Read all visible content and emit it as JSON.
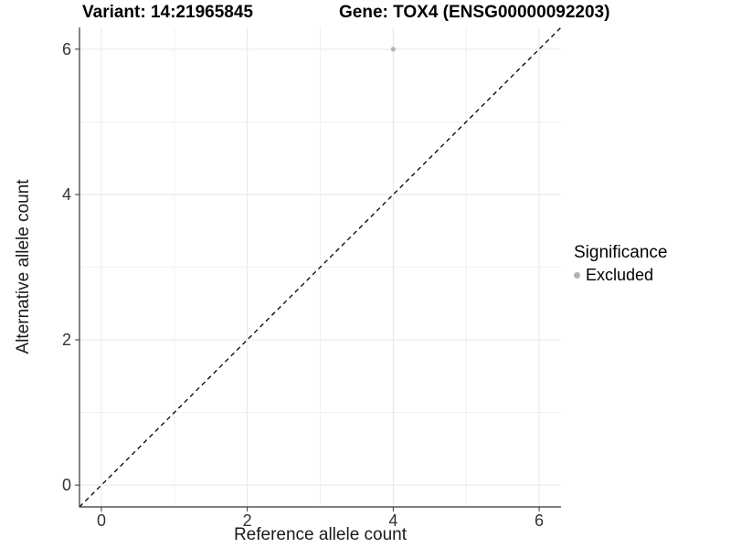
{
  "chart_data": {
    "type": "scatter",
    "title_left": "Variant: 14:21965845",
    "title_right": "Gene: TOX4 (ENSG00000092203)",
    "xlabel": "Reference allele count",
    "ylabel": "Alternative allele count",
    "xlim": [
      -0.3,
      6.3
    ],
    "ylim": [
      -0.3,
      6.3
    ],
    "x_ticks": [
      0,
      2,
      4,
      6
    ],
    "y_ticks": [
      0,
      2,
      4,
      6
    ],
    "grid": {
      "major": [
        0,
        2,
        4,
        6
      ],
      "minor": [
        1,
        3,
        5
      ],
      "major_color": "#e6e6e6",
      "minor_color": "#f1f1f1"
    },
    "series": [
      {
        "name": "Excluded",
        "color": "#b3b3b3",
        "points": [
          {
            "x": 4,
            "y": 6
          }
        ]
      }
    ],
    "reference_line": {
      "kind": "identity",
      "slope": 1,
      "intercept": 0,
      "style": "dashed",
      "color": "#000000"
    },
    "legend": {
      "title": "Significance",
      "position": "right",
      "entries": [
        {
          "label": "Excluded",
          "color": "#b3b3b3"
        }
      ]
    },
    "colors": {
      "axis_line": "#333333",
      "tick_mark": "#333333",
      "tick_text": "#333333",
      "background": "#ffffff"
    }
  }
}
